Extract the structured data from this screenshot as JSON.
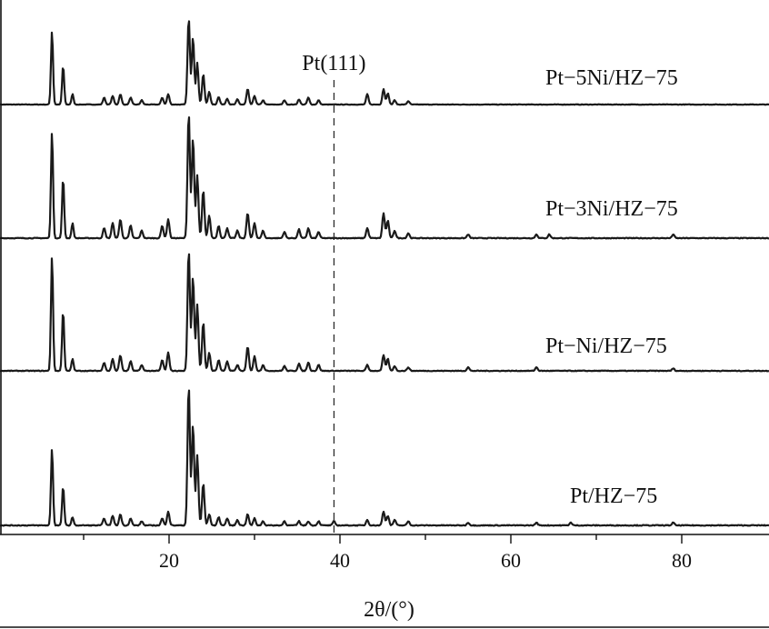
{
  "chart_data": {
    "type": "line",
    "title": "",
    "xlabel": "2θ/(°)",
    "ylabel": "",
    "xlim": [
      0,
      90
    ],
    "xticks": [
      20,
      40,
      60,
      80
    ],
    "xticks_minor": [
      10,
      30,
      50,
      70
    ],
    "grid": false,
    "stacked_offset": true,
    "annotations": [
      {
        "text": "Pt(111)",
        "x": 39.3,
        "style": "dashed-vertical"
      }
    ],
    "series": [
      {
        "name": "Pt−5Ni/HZ−75",
        "peaks": [
          [
            6.3,
            0.85
          ],
          [
            7.6,
            0.45
          ],
          [
            8.7,
            0.12
          ],
          [
            12.4,
            0.08
          ],
          [
            13.4,
            0.1
          ],
          [
            14.3,
            0.12
          ],
          [
            15.5,
            0.08
          ],
          [
            16.8,
            0.05
          ],
          [
            19.2,
            0.08
          ],
          [
            19.9,
            0.12
          ],
          [
            22.3,
            1.0
          ],
          [
            22.8,
            0.78
          ],
          [
            23.3,
            0.48
          ],
          [
            24.0,
            0.35
          ],
          [
            24.7,
            0.15
          ],
          [
            25.8,
            0.09
          ],
          [
            26.8,
            0.07
          ],
          [
            28.0,
            0.06
          ],
          [
            29.2,
            0.18
          ],
          [
            30.0,
            0.1
          ],
          [
            31.0,
            0.05
          ],
          [
            33.5,
            0.05
          ],
          [
            35.2,
            0.06
          ],
          [
            36.3,
            0.08
          ],
          [
            37.5,
            0.05
          ],
          [
            43.2,
            0.12
          ],
          [
            45.1,
            0.18
          ],
          [
            45.6,
            0.13
          ],
          [
            46.4,
            0.05
          ],
          [
            48.0,
            0.04
          ]
        ]
      },
      {
        "name": "Pt−3Ni/HZ−75",
        "peaks": [
          [
            6.3,
            0.85
          ],
          [
            7.6,
            0.48
          ],
          [
            8.7,
            0.12
          ],
          [
            12.4,
            0.08
          ],
          [
            13.4,
            0.12
          ],
          [
            14.3,
            0.15
          ],
          [
            15.5,
            0.1
          ],
          [
            16.8,
            0.06
          ],
          [
            19.2,
            0.1
          ],
          [
            19.9,
            0.15
          ],
          [
            22.3,
            1.0
          ],
          [
            22.8,
            0.8
          ],
          [
            23.3,
            0.5
          ],
          [
            24.0,
            0.38
          ],
          [
            24.7,
            0.18
          ],
          [
            25.8,
            0.1
          ],
          [
            26.8,
            0.08
          ],
          [
            28.0,
            0.06
          ],
          [
            29.2,
            0.2
          ],
          [
            30.0,
            0.12
          ],
          [
            31.0,
            0.06
          ],
          [
            33.5,
            0.05
          ],
          [
            35.2,
            0.07
          ],
          [
            36.3,
            0.08
          ],
          [
            37.5,
            0.05
          ],
          [
            43.2,
            0.08
          ],
          [
            45.1,
            0.2
          ],
          [
            45.6,
            0.14
          ],
          [
            46.4,
            0.06
          ],
          [
            48.0,
            0.04
          ],
          [
            55.0,
            0.03
          ],
          [
            63.0,
            0.03
          ],
          [
            64.5,
            0.03
          ],
          [
            79.0,
            0.03
          ]
        ]
      },
      {
        "name": "Pt−Ni/HZ−75",
        "peaks": [
          [
            6.3,
            0.95
          ],
          [
            7.6,
            0.5
          ],
          [
            8.7,
            0.1
          ],
          [
            12.4,
            0.07
          ],
          [
            13.4,
            0.1
          ],
          [
            14.3,
            0.13
          ],
          [
            15.5,
            0.08
          ],
          [
            16.8,
            0.05
          ],
          [
            19.2,
            0.09
          ],
          [
            19.9,
            0.15
          ],
          [
            22.3,
            1.0
          ],
          [
            22.8,
            0.78
          ],
          [
            23.3,
            0.55
          ],
          [
            24.0,
            0.4
          ],
          [
            24.7,
            0.15
          ],
          [
            25.8,
            0.09
          ],
          [
            26.8,
            0.08
          ],
          [
            28.0,
            0.05
          ],
          [
            29.2,
            0.2
          ],
          [
            30.0,
            0.12
          ],
          [
            31.0,
            0.05
          ],
          [
            33.5,
            0.04
          ],
          [
            35.2,
            0.06
          ],
          [
            36.3,
            0.07
          ],
          [
            37.5,
            0.05
          ],
          [
            43.2,
            0.05
          ],
          [
            45.1,
            0.13
          ],
          [
            45.6,
            0.1
          ],
          [
            46.4,
            0.04
          ],
          [
            48.0,
            0.03
          ],
          [
            55.0,
            0.03
          ],
          [
            63.0,
            0.03
          ],
          [
            79.0,
            0.02
          ]
        ]
      },
      {
        "name": "Pt/HZ−75",
        "peaks": [
          [
            6.3,
            0.55
          ],
          [
            7.6,
            0.28
          ],
          [
            8.7,
            0.06
          ],
          [
            12.4,
            0.05
          ],
          [
            13.4,
            0.07
          ],
          [
            14.3,
            0.08
          ],
          [
            15.5,
            0.05
          ],
          [
            16.8,
            0.03
          ],
          [
            19.2,
            0.05
          ],
          [
            19.9,
            0.1
          ],
          [
            22.3,
            1.0
          ],
          [
            22.8,
            0.72
          ],
          [
            23.3,
            0.5
          ],
          [
            24.0,
            0.3
          ],
          [
            24.7,
            0.08
          ],
          [
            25.8,
            0.06
          ],
          [
            26.8,
            0.05
          ],
          [
            28.0,
            0.04
          ],
          [
            29.2,
            0.08
          ],
          [
            30.0,
            0.05
          ],
          [
            31.0,
            0.03
          ],
          [
            33.5,
            0.03
          ],
          [
            35.2,
            0.03
          ],
          [
            36.3,
            0.03
          ],
          [
            37.5,
            0.03
          ],
          [
            39.3,
            0.03
          ],
          [
            43.2,
            0.04
          ],
          [
            45.1,
            0.1
          ],
          [
            45.6,
            0.07
          ],
          [
            46.4,
            0.04
          ],
          [
            48.0,
            0.03
          ],
          [
            55.0,
            0.02
          ],
          [
            63.0,
            0.02
          ],
          [
            67.0,
            0.02
          ],
          [
            79.0,
            0.02
          ]
        ]
      }
    ]
  }
}
